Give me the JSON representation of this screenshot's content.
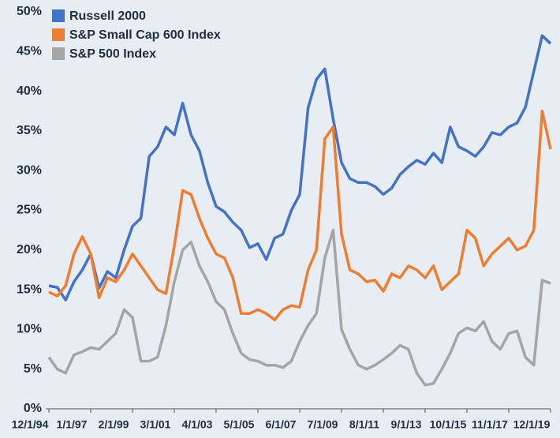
{
  "chart_data": {
    "type": "line",
    "categories": [
      "12/1/94",
      null,
      null,
      null,
      null,
      "1/1/97",
      null,
      null,
      null,
      null,
      "2/1/99",
      null,
      null,
      null,
      null,
      "3/1/01",
      null,
      null,
      null,
      null,
      "4/1/03",
      null,
      null,
      null,
      null,
      "5/1/05",
      null,
      null,
      null,
      null,
      "6/1/07",
      null,
      null,
      null,
      null,
      "7/1/09",
      null,
      null,
      null,
      null,
      "8/1/11",
      null,
      null,
      null,
      null,
      "9/1/13",
      null,
      null,
      null,
      null,
      "10/1/15",
      null,
      null,
      null,
      null,
      "11/1/17",
      null,
      null,
      null,
      null,
      "12/1/19"
    ],
    "series": [
      {
        "name": "Russell 2000",
        "color": "#4472c4",
        "values": [
          15.5,
          15.3,
          13.7,
          16,
          17.5,
          19.5,
          15.2,
          17.3,
          16.5,
          20,
          23,
          24,
          31.8,
          33,
          35.5,
          34.5,
          38.5,
          34.5,
          32.5,
          28.5,
          25.5,
          24.8,
          23.5,
          22.5,
          20.3,
          20.8,
          18.8,
          21.5,
          22,
          25,
          27,
          37.9,
          41.5,
          42.8,
          36.5,
          31,
          29,
          28.5,
          28.5,
          28,
          27,
          27.8,
          29.5,
          30.5,
          31.3,
          30.8,
          32.2,
          31,
          35.5,
          33,
          32.5,
          31.8,
          33,
          34.8,
          34.5,
          35.5,
          36,
          38,
          42.5,
          47,
          46
        ]
      },
      {
        "name": "S&P Small Cap 600 Index",
        "color": "#ed7d31",
        "values": [
          14.7,
          14.2,
          15.5,
          19.5,
          21.7,
          19.5,
          14,
          16.5,
          16,
          17.5,
          19.5,
          18,
          16.5,
          15,
          14.5,
          20.5,
          27.5,
          27,
          24,
          21.5,
          19.5,
          19,
          16.5,
          12,
          12,
          12.5,
          12,
          11.2,
          12.5,
          13,
          12.8,
          17.5,
          20,
          34,
          35.5,
          22,
          17.5,
          17,
          16,
          16.2,
          14.8,
          17,
          16.5,
          18,
          17.5,
          16.5,
          18,
          15,
          16,
          17,
          22.5,
          21.5,
          18,
          19.5,
          20.5,
          21.5,
          20,
          20.5,
          22.5,
          37.5,
          32.7
        ]
      },
      {
        "name": "S&P 500 Index",
        "color": "#a5a5a5",
        "values": [
          6.5,
          5,
          4.5,
          6.8,
          7.2,
          7.7,
          7.5,
          8.5,
          9.5,
          12.5,
          11.5,
          6,
          6,
          6.5,
          10.5,
          16,
          20,
          21,
          18,
          16,
          13.5,
          12.5,
          9.5,
          7,
          6.2,
          6,
          5.5,
          5.5,
          5.2,
          6,
          8.5,
          10.5,
          12,
          19,
          22.5,
          10,
          7.5,
          5.5,
          5,
          5.5,
          6.2,
          7,
          8,
          7.5,
          4.5,
          3,
          3.2,
          5,
          7,
          9.5,
          10.2,
          9.8,
          11,
          8.5,
          7.5,
          9.5,
          9.8,
          6.5,
          5.5,
          16.2,
          15.8
        ]
      }
    ],
    "ylim": [
      0,
      50
    ],
    "yticks": [
      {
        "value": 0,
        "label": "0%"
      },
      {
        "value": 5,
        "label": "5%"
      },
      {
        "value": 10,
        "label": "10%"
      },
      {
        "value": 15,
        "label": "15%"
      },
      {
        "value": 20,
        "label": "20%"
      },
      {
        "value": 25,
        "label": "25%"
      },
      {
        "value": 30,
        "label": "30%"
      },
      {
        "value": 35,
        "label": "35%"
      },
      {
        "value": 40,
        "label": "40%"
      },
      {
        "value": 45,
        "label": "45%"
      },
      {
        "value": 50,
        "label": "50%"
      }
    ],
    "legend": "top-left",
    "grid": false
  }
}
